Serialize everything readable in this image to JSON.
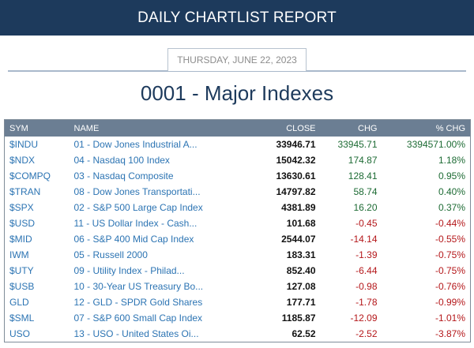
{
  "header": {
    "title": "DAILY CHARTLIST REPORT"
  },
  "report": {
    "date": "THURSDAY, JUNE 22, 2023",
    "title": "0001 - Major Indexes"
  },
  "table": {
    "columns": {
      "sym": "SYM",
      "name": "NAME",
      "close": "CLOSE",
      "chg": "CHG",
      "pct": "% CHG"
    },
    "rows": [
      {
        "sym": "$INDU",
        "name": "01 - Dow Jones Industrial A...",
        "close": "33946.71",
        "chg": "33945.71",
        "pct": "3394571.00%",
        "dir": "pos"
      },
      {
        "sym": "$NDX",
        "name": "04 - Nasdaq 100 Index",
        "close": "15042.32",
        "chg": "174.87",
        "pct": "1.18%",
        "dir": "pos"
      },
      {
        "sym": "$COMPQ",
        "name": "03 - Nasdaq Composite",
        "close": "13630.61",
        "chg": "128.41",
        "pct": "0.95%",
        "dir": "pos"
      },
      {
        "sym": "$TRAN",
        "name": "08 - Dow Jones Transportati...",
        "close": "14797.82",
        "chg": "58.74",
        "pct": "0.40%",
        "dir": "pos"
      },
      {
        "sym": "$SPX",
        "name": "02 - S&P 500 Large Cap Index",
        "close": "4381.89",
        "chg": "16.20",
        "pct": "0.37%",
        "dir": "pos"
      },
      {
        "sym": "$USD",
        "name": "11 - US Dollar Index - Cash...",
        "close": "101.68",
        "chg": "-0.45",
        "pct": "-0.44%",
        "dir": "neg"
      },
      {
        "sym": "$MID",
        "name": "06 - S&P 400 Mid Cap Index",
        "close": "2544.07",
        "chg": "-14.14",
        "pct": "-0.55%",
        "dir": "neg"
      },
      {
        "sym": "IWM",
        "name": "05 - Russell 2000",
        "close": "183.31",
        "chg": "-1.39",
        "pct": "-0.75%",
        "dir": "neg"
      },
      {
        "sym": "$UTY",
        "name": "09 - Utility Index - Philad...",
        "close": "852.40",
        "chg": "-6.44",
        "pct": "-0.75%",
        "dir": "neg"
      },
      {
        "sym": "$USB",
        "name": "10 - 30-Year US Treasury Bo...",
        "close": "127.08",
        "chg": "-0.98",
        "pct": "-0.76%",
        "dir": "neg"
      },
      {
        "sym": "GLD",
        "name": "12 - GLD - SPDR Gold Shares",
        "close": "177.71",
        "chg": "-1.78",
        "pct": "-0.99%",
        "dir": "neg"
      },
      {
        "sym": "$SML",
        "name": "07 - S&P 600 Small Cap Index",
        "close": "1185.87",
        "chg": "-12.09",
        "pct": "-1.01%",
        "dir": "neg"
      },
      {
        "sym": "USO",
        "name": "13 - USO - United States Oi...",
        "close": "62.52",
        "chg": "-2.52",
        "pct": "-3.87%",
        "dir": "neg"
      }
    ]
  }
}
